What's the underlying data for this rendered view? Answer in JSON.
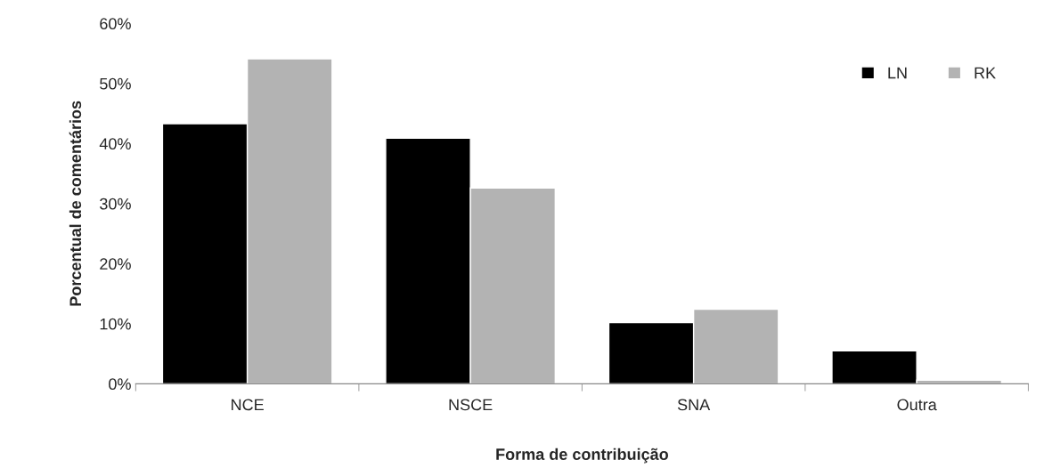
{
  "chart_data": {
    "type": "bar",
    "xlabel": "Forma de contribuição",
    "ylabel": "Porcentual de comentários",
    "categories": [
      "NCE",
      "NSCE",
      "SNA",
      "Outra"
    ],
    "series": [
      {
        "name": "LN",
        "color": "#000000",
        "values": [
          43.3,
          40.9,
          10.2,
          5.5
        ]
      },
      {
        "name": "RK",
        "color": "#b3b3b3",
        "values": [
          54.1,
          32.6,
          12.4,
          0.6
        ]
      }
    ],
    "ylim": [
      0,
      60
    ],
    "yticks": [
      {
        "value": 0,
        "label": "0%"
      },
      {
        "value": 10,
        "label": "10%"
      },
      {
        "value": 20,
        "label": "20%"
      },
      {
        "value": 30,
        "label": "30%"
      },
      {
        "value": 40,
        "label": "40%"
      },
      {
        "value": 50,
        "label": "50%"
      },
      {
        "value": 60,
        "label": "60%"
      }
    ],
    "grid": false,
    "legend": "top right"
  }
}
